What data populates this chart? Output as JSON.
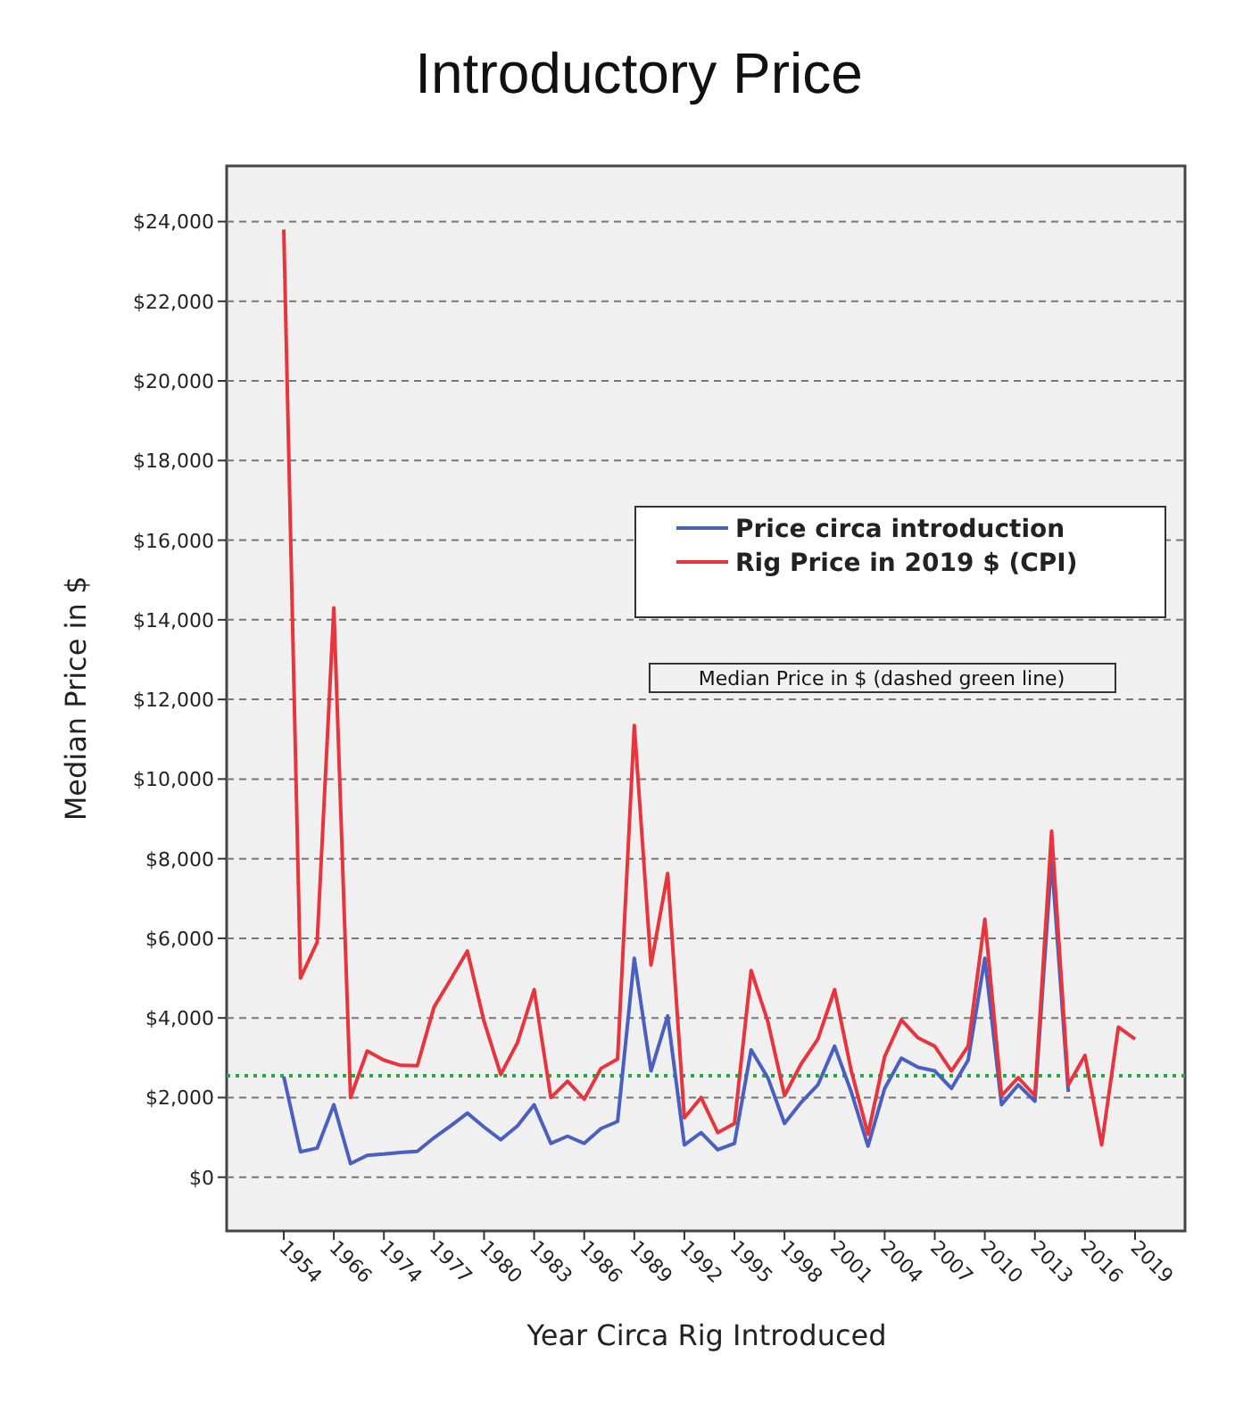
{
  "chart_data": {
    "type": "line",
    "title": "Introductory Price",
    "xlabel": "Year Circa Rig Introduced",
    "ylabel": "Median Price in $",
    "categories": [
      "1954",
      null,
      null,
      "1966",
      null,
      null,
      "1974",
      null,
      null,
      "1977",
      null,
      null,
      "1980",
      null,
      null,
      "1983",
      null,
      null,
      "1986",
      null,
      null,
      "1989",
      null,
      null,
      "1992",
      null,
      null,
      "1995",
      null,
      null,
      "1998",
      null,
      null,
      "2001",
      null,
      null,
      "2004",
      null,
      null,
      "2007",
      null,
      null,
      "2010",
      null,
      null,
      "2013",
      null,
      null,
      "2016",
      null,
      null,
      "2019"
    ],
    "series": [
      {
        "name": "Price circa introduction",
        "color": "#4a5fbf",
        "values": [
          2530,
          640,
          730,
          1820,
          340,
          550,
          580,
          620,
          650,
          990,
          1290,
          1610,
          1260,
          940,
          1290,
          1820,
          850,
          1030,
          850,
          1220,
          1400,
          5500,
          2670,
          4050,
          810,
          1120,
          690,
          850,
          3200,
          2500,
          1350,
          1880,
          2320,
          3290,
          2140,
          780,
          2230,
          2990,
          2760,
          2670,
          2230,
          2940,
          5500,
          1820,
          2320,
          1910,
          8000,
          2140,
          null,
          null,
          null,
          null
        ]
      },
      {
        "name": "Rig Price in 2019 $ (CPI)",
        "color": "#e8343c",
        "values": [
          23800,
          5000,
          5900,
          14300,
          2000,
          3170,
          2940,
          2810,
          2800,
          4270,
          4970,
          5680,
          3910,
          2580,
          3380,
          4710,
          2000,
          2410,
          1960,
          2730,
          2970,
          11350,
          5330,
          7630,
          1490,
          2000,
          1120,
          1350,
          5190,
          3910,
          2050,
          2850,
          3470,
          4710,
          2670,
          1080,
          3030,
          3950,
          3500,
          3290,
          2670,
          3290,
          6480,
          2050,
          2500,
          2050,
          8690,
          2320,
          3060,
          810,
          3770,
          3470
        ]
      }
    ],
    "ylim": [
      -1350,
      25400
    ],
    "yticks": [
      {
        "value": 0,
        "label": "$0"
      },
      {
        "value": 2000,
        "label": "$2,000"
      },
      {
        "value": 4000,
        "label": "$4,000"
      },
      {
        "value": 6000,
        "label": "$6,000"
      },
      {
        "value": 8000,
        "label": "$8,000"
      },
      {
        "value": 10000,
        "label": "$10,000"
      },
      {
        "value": 12000,
        "label": "$12,000"
      },
      {
        "value": 14000,
        "label": "$14,000"
      },
      {
        "value": 16000,
        "label": "$16,000"
      },
      {
        "value": 18000,
        "label": "$18,000"
      },
      {
        "value": 20000,
        "label": "$20,000"
      },
      {
        "value": 22000,
        "label": "$22,000"
      },
      {
        "value": 24000,
        "label": "$24,000"
      }
    ],
    "grid": "y",
    "legend": "right",
    "marker": "none",
    "line_style": "solid",
    "ref_lines": [
      {
        "axis": "y",
        "value": 2550,
        "color": "#22aa44",
        "line_style": "dotted"
      }
    ],
    "annotations": [
      "Median Price in $ (dashed green line)"
    ]
  }
}
